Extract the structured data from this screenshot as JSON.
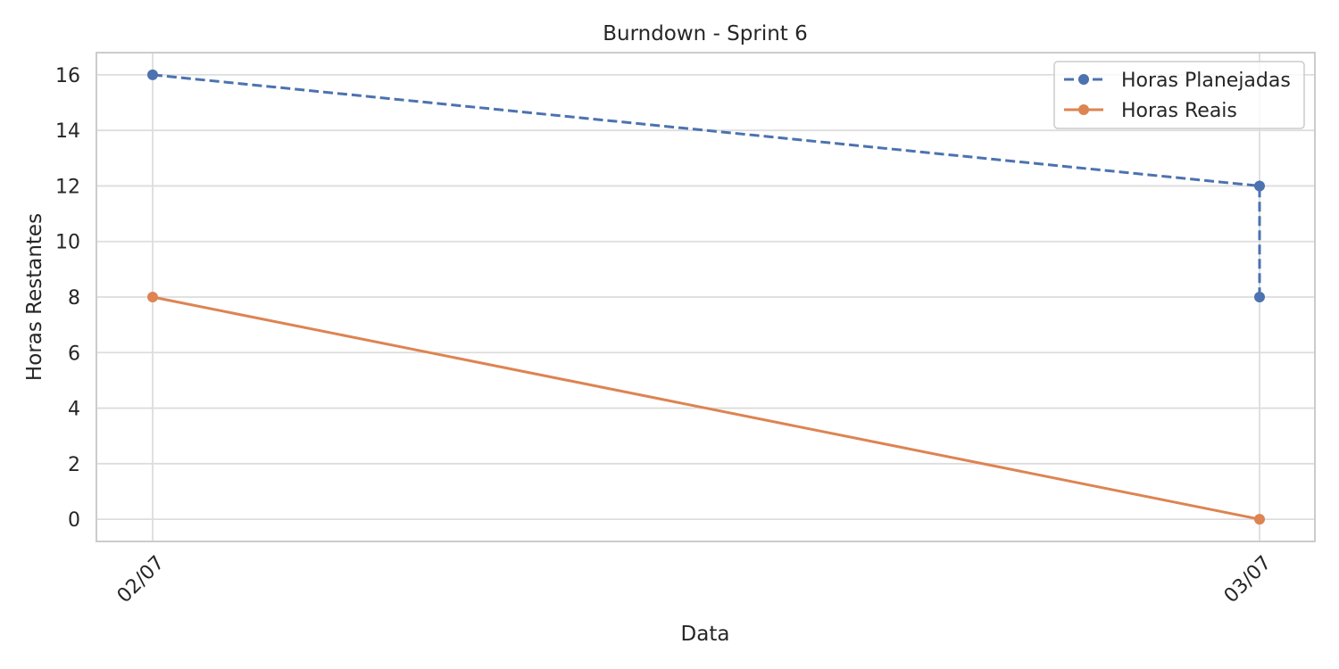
{
  "chart_data": {
    "type": "line",
    "title": "Burndown - Sprint 6",
    "xlabel": "Data",
    "ylabel": "Horas Restantes",
    "x_categories": [
      "02/07",
      "03/07"
    ],
    "ylim": [
      -0.8,
      16.8
    ],
    "yticks": [
      0,
      2,
      4,
      6,
      8,
      10,
      12,
      14,
      16
    ],
    "grid": true,
    "legend_position": "top-right",
    "series": [
      {
        "name": "Horas Planejadas",
        "color": "#4c72b0",
        "line_style": "dashed",
        "marker": "circle",
        "points": [
          {
            "x": "02/07",
            "y": 16
          },
          {
            "x": "03/07",
            "y": 12
          },
          {
            "x": "03/07",
            "y": 8
          }
        ]
      },
      {
        "name": "Horas Reais",
        "color": "#dd8452",
        "line_style": "solid",
        "marker": "circle",
        "points": [
          {
            "x": "02/07",
            "y": 8
          },
          {
            "x": "03/07",
            "y": 0
          }
        ]
      }
    ]
  }
}
